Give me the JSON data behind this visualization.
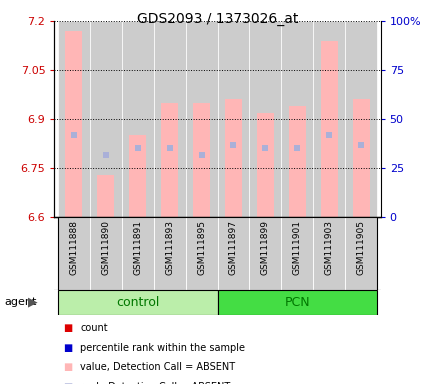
{
  "title": "GDS2093 / 1373026_at",
  "samples": [
    "GSM111888",
    "GSM111890",
    "GSM111891",
    "GSM111893",
    "GSM111895",
    "GSM111897",
    "GSM111899",
    "GSM111901",
    "GSM111903",
    "GSM111905"
  ],
  "bar_tops": [
    7.17,
    6.73,
    6.85,
    6.95,
    6.95,
    6.96,
    6.92,
    6.94,
    7.14,
    6.96
  ],
  "rank_values": [
    6.85,
    6.79,
    6.81,
    6.81,
    6.79,
    6.82,
    6.81,
    6.81,
    6.85,
    6.82
  ],
  "ylim_left": [
    6.6,
    7.2
  ],
  "ylim_right": [
    0,
    100
  ],
  "yticks_left": [
    6.6,
    6.75,
    6.9,
    7.05,
    7.2
  ],
  "ytick_labels_left": [
    "6.6",
    "6.75",
    "6.9",
    "7.05",
    "7.2"
  ],
  "yticks_right": [
    0,
    25,
    50,
    75,
    100
  ],
  "ytick_labels_right": [
    "0",
    "25",
    "50",
    "75",
    "100%"
  ],
  "bar_color": "#ffb6b6",
  "rank_color": "#aab0d8",
  "col_bg_color": "#cccccc",
  "bar_base": 6.6,
  "control_color": "#bbeeaa",
  "pcn_color": "#44dd44",
  "group_label_color": "#007700",
  "legend_colors": [
    "#dd0000",
    "#0000cc",
    "#ffb6b6",
    "#aab0d8"
  ],
  "legend_labels": [
    "count",
    "percentile rank within the sample",
    "value, Detection Call = ABSENT",
    "rank, Detection Call = ABSENT"
  ]
}
